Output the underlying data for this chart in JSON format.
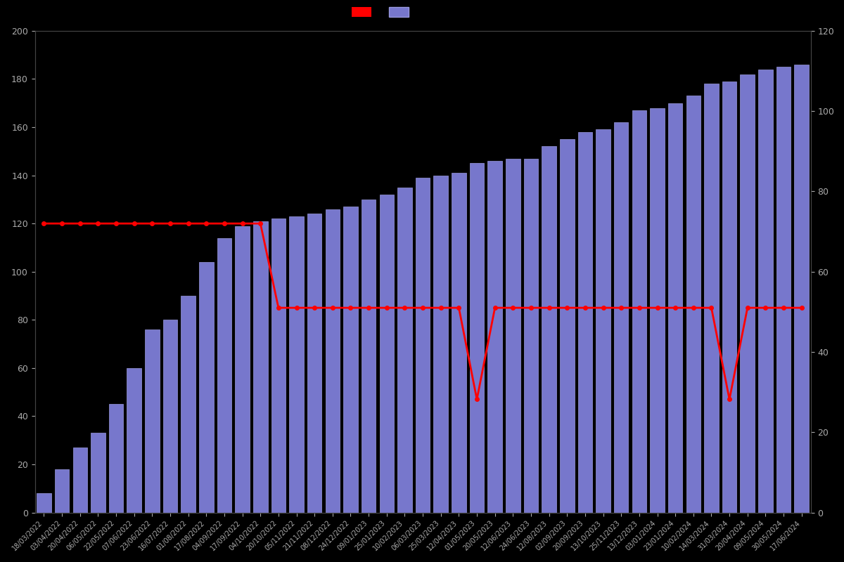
{
  "background_color": "#000000",
  "bar_color": "#7777cc",
  "bar_edge_color": "#9999dd",
  "line_color": "#ff0000",
  "line_marker": "o",
  "left_yaxis": {
    "min": 0,
    "max": 200,
    "ticks": [
      0,
      20,
      40,
      60,
      80,
      100,
      120,
      140,
      160,
      180,
      200
    ]
  },
  "right_yaxis": {
    "min": 0,
    "max": 120,
    "ticks": [
      0,
      20,
      40,
      60,
      80,
      100,
      120
    ]
  },
  "dates": [
    "18/03/2022",
    "03/04/2022",
    "20/04/2022",
    "06/05/2022",
    "22/05/2022",
    "07/06/2022",
    "23/06/2022",
    "16/07/2022",
    "01/08/2022",
    "17/08/2022",
    "04/09/2022",
    "17/09/2022",
    "04/10/2022",
    "20/10/2022",
    "05/11/2022",
    "21/11/2022",
    "08/12/2022",
    "24/12/2022",
    "09/01/2023",
    "25/01/2023",
    "10/02/2023",
    "06/03/2023",
    "25/03/2023",
    "12/04/2023",
    "01/05/2023",
    "20/05/2023",
    "12/06/2023",
    "24/06/2023",
    "12/08/2023",
    "02/09/2023",
    "20/09/2023",
    "13/10/2023",
    "25/11/2023",
    "13/12/2023",
    "03/01/2024",
    "23/01/2024",
    "10/02/2024",
    "14/03/2024",
    "31/03/2024",
    "20/04/2024",
    "09/05/2024",
    "30/05/2024",
    "17/06/2024"
  ],
  "bar_values": [
    8,
    18,
    27,
    33,
    45,
    60,
    76,
    80,
    90,
    104,
    114,
    119,
    121,
    122,
    123,
    124,
    126,
    127,
    130,
    132,
    135,
    139,
    140,
    141,
    145,
    146,
    147,
    147,
    152,
    155,
    158,
    159,
    162,
    167,
    168,
    170,
    173,
    178,
    179,
    182,
    184,
    185,
    186
  ],
  "line_values_left_axis": [
    120,
    120,
    120,
    120,
    120,
    120,
    120,
    120,
    120,
    120,
    120,
    120,
    120,
    85,
    85,
    85,
    85,
    85,
    85,
    85,
    85,
    85,
    85,
    85,
    47,
    85,
    85,
    85,
    85,
    85,
    85,
    85,
    85,
    85,
    85,
    85,
    85,
    85,
    47,
    85,
    85,
    85,
    85
  ],
  "text_color": "#aaaaaa",
  "figsize": [
    12,
    8
  ],
  "dpi": 100
}
